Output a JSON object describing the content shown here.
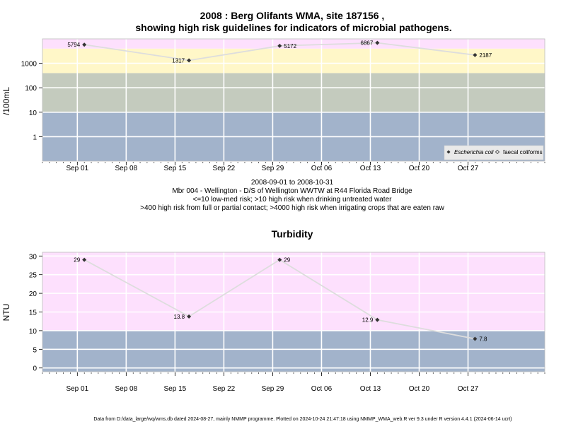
{
  "chart_data": [
    {
      "type": "line",
      "title": "2008 : Berg Olifants WMA, site 187156 ,",
      "title2": "showing high risk guidelines for indicators of microbial pathogens.",
      "ylabel": "/100mL",
      "yscale": "log",
      "ylim": [
        0.1,
        10000
      ],
      "yticks": [
        1,
        10,
        100,
        1000
      ],
      "yticklabels": [
        "1",
        "10",
        "100",
        "1000"
      ],
      "xlim": [
        "2008-08-27",
        "2008-11-07"
      ],
      "xticks": [
        "2008-09-01",
        "2008-09-08",
        "2008-09-15",
        "2008-09-22",
        "2008-09-29",
        "2008-10-06",
        "2008-10-13",
        "2008-10-20",
        "2008-10-27"
      ],
      "xticklabels": [
        "Sep 01",
        "Sep 08",
        "Sep 15",
        "Sep 22",
        "Sep 29",
        "Oct 06",
        "Oct 13",
        "Oct 20",
        "Oct 27"
      ],
      "grid": true,
      "bands": [
        {
          "from": 0.1,
          "to": 10,
          "color": "#a2b3cb"
        },
        {
          "from": 10,
          "to": 400,
          "color": "#c4cbbe"
        },
        {
          "from": 400,
          "to": 4000,
          "color": "#fff7c8"
        },
        {
          "from": 4000,
          "to": 10000,
          "color": "#fde0fd"
        }
      ],
      "series": [
        {
          "name": "Escherichia coli",
          "x": [
            "2008-09-02",
            "2008-09-17",
            "2008-09-30",
            "2008-10-14",
            "2008-10-28"
          ],
          "y": [
            5794,
            1317,
            5172,
            6867,
            2187
          ],
          "labels": [
            "5794",
            "1317",
            "5172",
            "6867",
            "2187"
          ],
          "label_side": [
            "left",
            "left",
            "right",
            "left",
            "right"
          ]
        }
      ],
      "legend": {
        "position": "bottom-right",
        "entries": [
          "Escherichia coli",
          "faecal coliforms"
        ]
      },
      "subtitle_lines": [
        "2008-09-01 to 2008-10-31",
        "Mbr 004 - Wellington - D/S of Wellington WWTW at R44 Florida Road Bridge",
        "<=10 low-med risk; >10 high risk when drinking untreated water",
        ">400 high risk from full or partial contact; >4000 high risk when irrigating crops that are eaten raw"
      ]
    },
    {
      "type": "line",
      "title": "Turbidity",
      "ylabel": "NTU",
      "yscale": "linear",
      "ylim": [
        -1,
        31
      ],
      "yticks": [
        0,
        5,
        10,
        15,
        20,
        25,
        30
      ],
      "yticklabels": [
        "0",
        "5",
        "10",
        "15",
        "20",
        "25",
        "30"
      ],
      "xlim": [
        "2008-08-27",
        "2008-11-07"
      ],
      "xticks": [
        "2008-09-01",
        "2008-09-08",
        "2008-09-15",
        "2008-09-22",
        "2008-09-29",
        "2008-10-06",
        "2008-10-13",
        "2008-10-20",
        "2008-10-27"
      ],
      "xticklabels": [
        "Sep 01",
        "Sep 08",
        "Sep 15",
        "Sep 22",
        "Sep 29",
        "Oct 06",
        "Oct 13",
        "Oct 20",
        "Oct 27"
      ],
      "grid": true,
      "bands": [
        {
          "from": -1,
          "to": 10,
          "color": "#a2b3cb"
        },
        {
          "from": 10,
          "to": 31,
          "color": "#fde0fd"
        }
      ],
      "series": [
        {
          "x": [
            "2008-09-02",
            "2008-09-17",
            "2008-09-30",
            "2008-10-14",
            "2008-10-28"
          ],
          "y": [
            29,
            13.8,
            29,
            12.9,
            7.8
          ],
          "labels": [
            "29",
            "13.8",
            "29",
            "12.9",
            "7.8"
          ],
          "label_side": [
            "left",
            "left",
            "right",
            "left",
            "right"
          ]
        }
      ]
    }
  ],
  "footer": "Data from D:/data_large/wq/wms.db dated 2024-08-27, mainly NMMP programme. Plotted on 2024-10-24 21:47:18 using NMMP_WMA_web.R ver 9.3 under R version 4.4.1 (2024-06-14 ucrt)"
}
